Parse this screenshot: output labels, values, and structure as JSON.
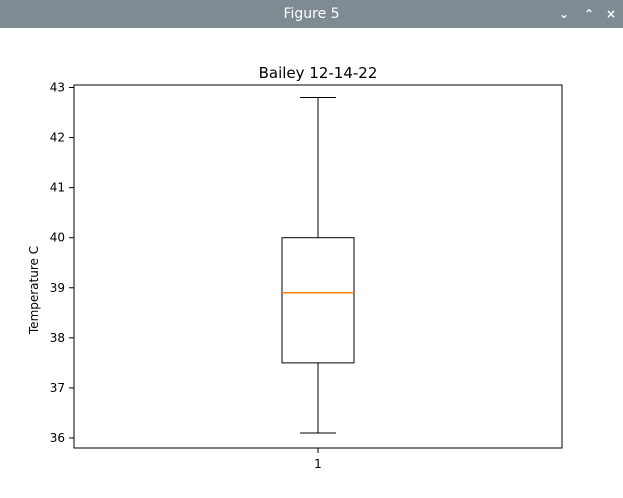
{
  "window": {
    "title": "Figure 5",
    "minimize_glyph": "⌄",
    "maximize_glyph": "⌃",
    "close_glyph": "×"
  },
  "colors": {
    "titlebar": "#7e8b93",
    "median": "#ff7f0e",
    "box": "#000000"
  },
  "chart_data": {
    "type": "boxplot",
    "title": "Bailey 12-14-22",
    "xlabel": "",
    "ylabel": "Temperature C",
    "categories": [
      "1"
    ],
    "ylim": [
      35.8,
      43.05
    ],
    "yticks": [
      36,
      37,
      38,
      39,
      40,
      41,
      42,
      43
    ],
    "boxes": [
      {
        "category": "1",
        "whisker_low": 36.1,
        "q1": 37.5,
        "median": 38.9,
        "q3": 40.0,
        "whisker_high": 42.8
      }
    ],
    "grid": false
  }
}
